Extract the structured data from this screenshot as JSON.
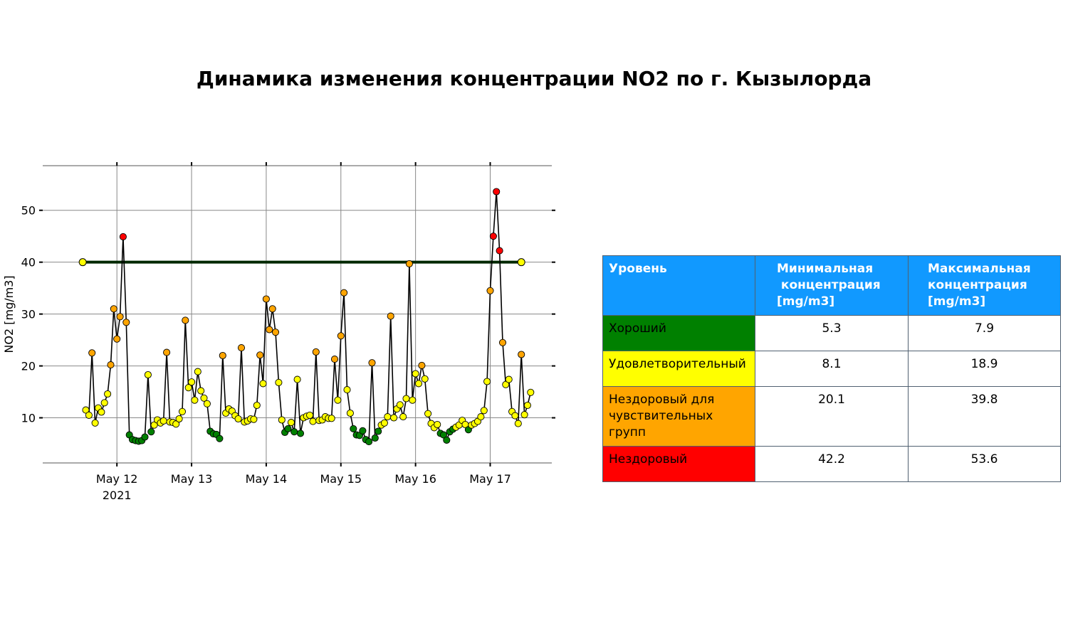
{
  "title": "Динамика изменения концентрации NO2 по г. Кызылорда",
  "colors": {
    "good": "#008000",
    "moderate": "#ffff00",
    "usg": "#ffa500",
    "unhealthy": "#ff0000",
    "header": "#1199ff",
    "threshold": "#002800"
  },
  "chart_data": {
    "type": "line",
    "title": "Динамика изменения концентрации NO2 по г. Кызылорда",
    "xlabel": "",
    "ylabel": "NO2 [mg/m3]",
    "x_ticks": [
      "May 12",
      "May 13",
      "May 14",
      "May 15",
      "May 16",
      "May 17"
    ],
    "x_year_label": "2021",
    "x_range": [
      "2021-05-11 00:09",
      "2021-05-17 19:48"
    ],
    "y_ticks": [
      10,
      20,
      30,
      40,
      50
    ],
    "ylim": [
      1.3,
      58.6
    ],
    "grid": true,
    "threshold": {
      "value": 40,
      "x_from": "2021-05-11 13:00",
      "x_to": "2021-05-17 10:00"
    },
    "series": [
      {
        "x_start": "2021-05-11 14:00",
        "x_step_hours": 1,
        "values": [
          11.5,
          10.5,
          22.5,
          9.0,
          11.9,
          11.1,
          12.9,
          14.6,
          20.2,
          31.0,
          25.2,
          29.5,
          44.9,
          28.4,
          6.7,
          5.8,
          5.6,
          5.5,
          5.6,
          6.3,
          18.3,
          7.3,
          8.6,
          9.6,
          9.0,
          9.4,
          22.6,
          9.2,
          9.1,
          8.8,
          9.8,
          11.2,
          28.8,
          15.8,
          16.9,
          13.4,
          18.9,
          15.2,
          13.8,
          12.7,
          7.4,
          6.9,
          6.8,
          6.0,
          22.0,
          10.9,
          11.7,
          11.3,
          10.4,
          9.8,
          23.5,
          9.2,
          9.4,
          9.8,
          9.7,
          12.4,
          22.1,
          16.6,
          32.9,
          27.0,
          31.0,
          26.5,
          16.8,
          9.6,
          7.2,
          7.9,
          9.1,
          7.3,
          17.4,
          7.0,
          10.0,
          10.3,
          10.5,
          9.3,
          22.7,
          9.5,
          9.6,
          10.2,
          9.9,
          9.9,
          21.3,
          13.4,
          25.8,
          34.1,
          15.4,
          10.9,
          7.9,
          6.7,
          6.6,
          7.5,
          5.8,
          5.4,
          20.6,
          6.1,
          7.4,
          8.6,
          9.0,
          10.2,
          29.6,
          10.0,
          11.7,
          12.5,
          10.2,
          13.7,
          39.7,
          13.4,
          18.5,
          16.6,
          20.1,
          17.5,
          10.8,
          8.9,
          8.1,
          8.7,
          7.0,
          6.7,
          5.7,
          7.3,
          7.8,
          8.2,
          8.6,
          9.5,
          8.7,
          7.7,
          8.6,
          8.9,
          9.3,
          10.2,
          11.4,
          17.0,
          34.5,
          45.0,
          53.6,
          42.2,
          24.5,
          16.4,
          17.4,
          11.2,
          10.4,
          8.9,
          22.2,
          10.6,
          12.4,
          14.9
        ]
      }
    ]
  },
  "table": {
    "headers": [
      "Уровень",
      "Минимальная концентрация [mg/m3]",
      "Максимальная концентрация [mg/m3]"
    ],
    "rows": [
      {
        "level": "Хороший",
        "min": "5.3",
        "max": "7.9",
        "color": "#008000"
      },
      {
        "level": "Удовлетворительный",
        "min": "8.1",
        "max": "18.9",
        "color": "#ffff00"
      },
      {
        "level": "Нездоровый для чувствительных групп",
        "min": "20.1",
        "max": "39.8",
        "color": "#ffa500"
      },
      {
        "level": "Нездоровый",
        "min": "42.2",
        "max": "53.6",
        "color": "#ff0000"
      }
    ]
  }
}
